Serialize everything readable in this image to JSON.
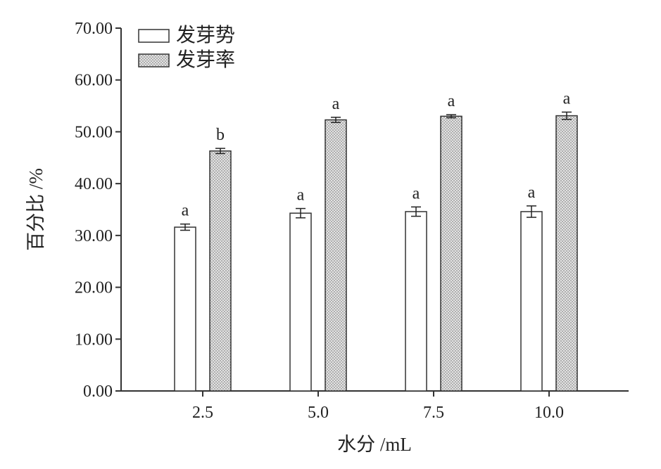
{
  "chart_data": {
    "type": "bar",
    "title": "",
    "xlabel": "水分 /mL",
    "ylabel": "百分比 /%",
    "ylim": [
      0,
      70
    ],
    "yticks": [
      "0.00",
      "10.00",
      "20.00",
      "30.00",
      "40.00",
      "50.00",
      "60.00",
      "70.00"
    ],
    "categories": [
      "2.5",
      "5.0",
      "7.5",
      "10.0"
    ],
    "grid": false,
    "legend_position": "top-left",
    "series": [
      {
        "name": "发芽势",
        "fill": "plain",
        "color": "#ffffff",
        "values": [
          31.6,
          34.3,
          34.6,
          34.6
        ],
        "errors": [
          0.6,
          0.9,
          0.9,
          1.1
        ],
        "significance": [
          "a",
          "a",
          "a",
          "a"
        ]
      },
      {
        "name": "发芽率",
        "fill": "dotted",
        "color": "#c8c8c8",
        "values": [
          46.3,
          52.3,
          53.0,
          53.1
        ],
        "errors": [
          0.5,
          0.5,
          0.3,
          0.7
        ],
        "significance": [
          "b",
          "a",
          "a",
          "a"
        ]
      }
    ]
  }
}
